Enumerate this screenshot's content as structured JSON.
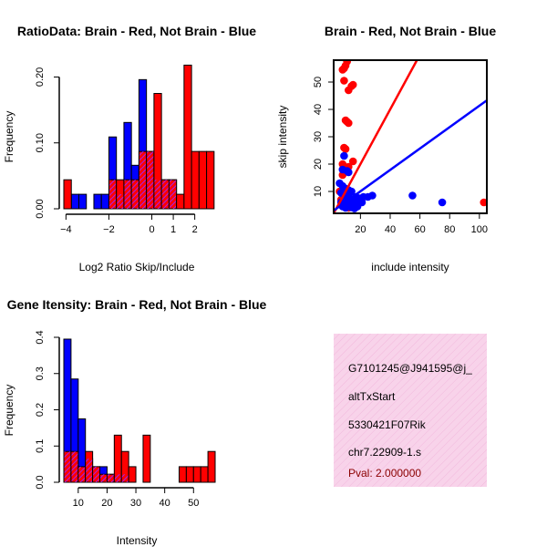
{
  "colors": {
    "brain": "#ff0000",
    "not_brain": "#0000ff",
    "overlap": "#a020f0",
    "info_bg": "#f8d3ea",
    "pval": "#8b0000"
  },
  "chart_data": [
    {
      "type": "bar",
      "id": "ratio",
      "title": "RatioData: Brain - Red, Not Brain - Blue",
      "xlabel": "Log2 Ratio Skip/Include",
      "ylabel": "Frequency",
      "xlim": [
        -4.1,
        2.95
      ],
      "ylim": [
        0,
        0.22
      ],
      "xticks": [
        -4,
        -2,
        0,
        1,
        2
      ],
      "xtick_labels": [
        "−4",
        "−2",
        "0",
        "1",
        "2"
      ],
      "yticks": [
        0,
        0.1,
        0.2
      ],
      "ytick_labels": [
        "0.00",
        "0.10",
        "0.20"
      ],
      "bin_width": 0.35,
      "bin_start": -4.1,
      "series": [
        {
          "name": "Not Brain",
          "color": "#0000ff",
          "values": [
            0,
            0.022,
            0.022,
            0,
            0.022,
            0.022,
            0.109,
            0.022,
            0.131,
            0.066,
            0.196,
            0.087,
            0.044,
            0.044,
            0.044,
            0,
            0,
            0,
            0,
            0
          ]
        },
        {
          "name": "Brain",
          "color": "#ff0000",
          "values": [
            0.044,
            0,
            0,
            0,
            0,
            0,
            0.044,
            0.044,
            0.044,
            0.044,
            0.087,
            0.087,
            0.175,
            0.044,
            0.044,
            0.022,
            0.218,
            0.087,
            0.087,
            0.087
          ]
        }
      ]
    },
    {
      "type": "scatter",
      "id": "scatter",
      "title": "Brain - Red, Not Brain - Blue",
      "xlabel": "include intensity",
      "ylabel": "skip intensity",
      "xlim": [
        2,
        105
      ],
      "ylim": [
        2,
        58
      ],
      "xticks": [
        20,
        40,
        60,
        80,
        100
      ],
      "yticks": [
        10,
        20,
        30,
        40,
        50
      ],
      "series": [
        {
          "name": "Brain",
          "color": "#ff0000",
          "points": [
            [
              8,
              54.5
            ],
            [
              9,
              55
            ],
            [
              10,
              56
            ],
            [
              11,
              57.5
            ],
            [
              9,
              50.5
            ],
            [
              12,
              47
            ],
            [
              14,
              48.5
            ],
            [
              15,
              49
            ],
            [
              10,
              36
            ],
            [
              11,
              35.5
            ],
            [
              12,
              35
            ],
            [
              9,
              26
            ],
            [
              10,
              25.5
            ],
            [
              8,
              20
            ],
            [
              8,
              16
            ],
            [
              12,
              19
            ],
            [
              15,
              21
            ],
            [
              6,
              10
            ],
            [
              8,
              9
            ],
            [
              10,
              8
            ],
            [
              7,
              7
            ],
            [
              14,
              6
            ],
            [
              12,
              4
            ],
            [
              9,
              6
            ],
            [
              103,
              6
            ]
          ],
          "line": [
            [
              2,
              2
            ],
            [
              58,
              58
            ]
          ]
        },
        {
          "name": "Not Brain",
          "color": "#0000ff",
          "points": [
            [
              9,
              23
            ],
            [
              8,
              18
            ],
            [
              11,
              17.5
            ],
            [
              12,
              17
            ],
            [
              6,
              13
            ],
            [
              8,
              12
            ],
            [
              10,
              11
            ],
            [
              12,
              10.5
            ],
            [
              14,
              10
            ],
            [
              7,
              9.5
            ],
            [
              9,
              8.5
            ],
            [
              11,
              8
            ],
            [
              13,
              7.5
            ],
            [
              15,
              7
            ],
            [
              17,
              8
            ],
            [
              19,
              7.5
            ],
            [
              20,
              7
            ],
            [
              22,
              8
            ],
            [
              7,
              6
            ],
            [
              9,
              5.5
            ],
            [
              11,
              6
            ],
            [
              13,
              5
            ],
            [
              15,
              5.5
            ],
            [
              17,
              6
            ],
            [
              19,
              6.5
            ],
            [
              21,
              6
            ],
            [
              25,
              8
            ],
            [
              28,
              8.5
            ],
            [
              55,
              8.5
            ],
            [
              75,
              6
            ],
            [
              8,
              4.5
            ],
            [
              10,
              4
            ],
            [
              14,
              4.2
            ],
            [
              16,
              3.8
            ],
            [
              18,
              4.5
            ]
          ],
          "line": [
            [
              2,
              3
            ],
            [
              105,
              43.3
            ]
          ]
        }
      ]
    },
    {
      "type": "bar",
      "id": "intensity",
      "title": "Gene Itensity: Brain - Red, Not Brain - Blue",
      "xlabel": "Intensity",
      "ylabel": "Frequency",
      "xlim": [
        5,
        57.5
      ],
      "ylim": [
        0,
        0.4
      ],
      "xticks": [
        10,
        20,
        30,
        40,
        50
      ],
      "yticks": [
        0,
        0.1,
        0.2,
        0.3,
        0.4
      ],
      "ytick_labels": [
        "0.0",
        "0.1",
        "0.2",
        "0.3",
        "0.4"
      ],
      "bin_width": 2.5,
      "bin_start": 5,
      "series": [
        {
          "name": "Not Brain",
          "color": "#0000ff",
          "values": [
            0.395,
            0.285,
            0.175,
            0.065,
            0.043,
            0.043,
            0.022,
            0.022,
            0.022,
            0,
            0,
            0,
            0,
            0,
            0,
            0,
            0,
            0,
            0,
            0,
            0
          ]
        },
        {
          "name": "Brain",
          "color": "#ff0000",
          "values": [
            0.085,
            0.085,
            0.043,
            0.085,
            0.043,
            0.022,
            0.022,
            0.13,
            0.085,
            0.043,
            0,
            0.13,
            0,
            0,
            0,
            0,
            0.043,
            0.043,
            0.043,
            0.043,
            0.085
          ]
        }
      ]
    }
  ],
  "info": {
    "lines": [
      "G7101245@J941595@j_",
      "altTxStart",
      "5330421F07Rik",
      "chr7.22909-1.s"
    ],
    "pval": "Pval: 2.000000"
  }
}
